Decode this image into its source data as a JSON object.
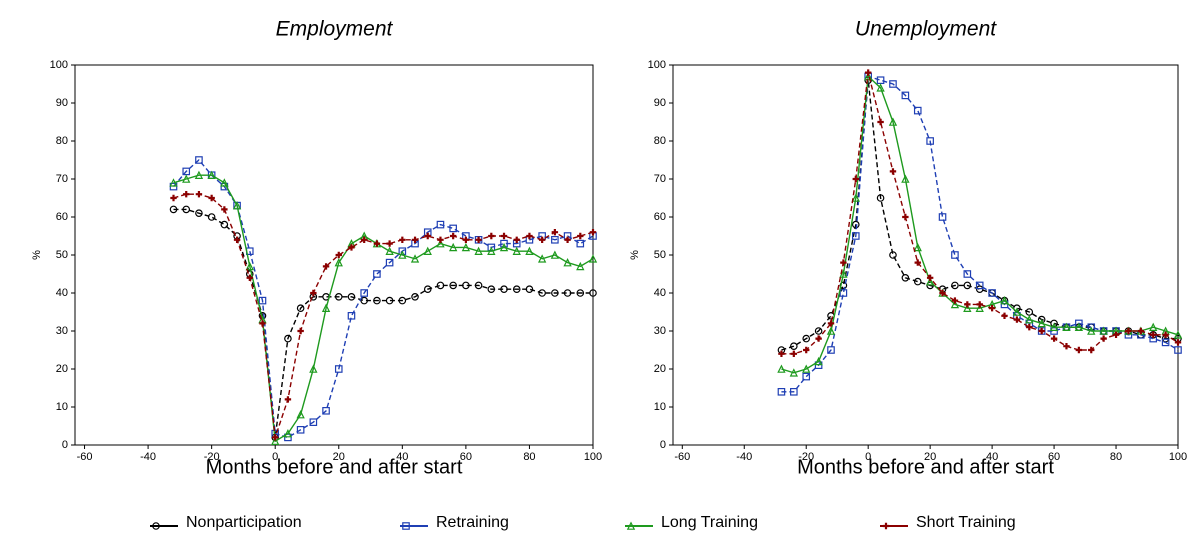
{
  "chart_data": [
    {
      "type": "line",
      "title": "Employment",
      "x_label": "Months before and after start",
      "y_label": "%",
      "x": [
        -32,
        -28,
        -24,
        -20,
        -16,
        -12,
        -8,
        -4,
        0,
        4,
        8,
        12,
        16,
        20,
        24,
        28,
        32,
        36,
        40,
        44,
        48,
        52,
        56,
        60,
        64,
        68,
        72,
        76,
        80,
        84,
        88,
        92,
        96,
        100
      ],
      "series": [
        {
          "name": "Nonparticipation",
          "color": "#000000",
          "marker": "circle",
          "line_style": "dashed",
          "values": [
            62,
            62,
            61,
            60,
            58,
            55,
            45,
            34,
            2,
            28,
            36,
            39,
            39,
            39,
            39,
            38,
            38,
            38,
            38,
            39,
            41,
            42,
            42,
            42,
            42,
            41,
            41,
            41,
            41,
            40,
            40,
            40,
            40,
            40
          ]
        },
        {
          "name": "Retraining",
          "color": "#1f3fb4",
          "marker": "square",
          "line_style": "dashed",
          "values": [
            68,
            72,
            75,
            71,
            68,
            63,
            51,
            38,
            3,
            2,
            4,
            6,
            9,
            20,
            34,
            40,
            45,
            48,
            51,
            53,
            56,
            58,
            57,
            55,
            54,
            52,
            53,
            53,
            54,
            55,
            54,
            55,
            53,
            55
          ]
        },
        {
          "name": "Long Training",
          "color": "#1e9a1e",
          "marker": "triangle",
          "line_style": "solid",
          "values": [
            69,
            70,
            71,
            71,
            69,
            63,
            47,
            33,
            1,
            3,
            8,
            20,
            36,
            48,
            53,
            55,
            53,
            51,
            50,
            49,
            51,
            53,
            52,
            52,
            51,
            51,
            52,
            51,
            51,
            49,
            50,
            48,
            47,
            49
          ]
        },
        {
          "name": "Short Training",
          "color": "#8b0000",
          "marker": "plus",
          "line_style": "dashed",
          "values": [
            65,
            66,
            66,
            65,
            62,
            54,
            44,
            32,
            2,
            12,
            30,
            40,
            47,
            50,
            52,
            54,
            53,
            53,
            54,
            54,
            55,
            54,
            55,
            54,
            54,
            55,
            55,
            54,
            55,
            54,
            56,
            54,
            55,
            56
          ]
        }
      ],
      "xlim": [
        -63,
        100
      ],
      "xticks": [
        -60,
        -40,
        -20,
        0,
        20,
        40,
        60,
        80,
        100
      ],
      "ylim": [
        0,
        100
      ],
      "yticks": [
        0,
        10,
        20,
        30,
        40,
        50,
        60,
        70,
        80,
        90,
        100
      ]
    },
    {
      "type": "line",
      "title": "Unemployment",
      "x_label": "Months before and after start",
      "y_label": "%",
      "x": [
        -28,
        -24,
        -20,
        -16,
        -12,
        -8,
        -4,
        0,
        4,
        8,
        12,
        16,
        20,
        24,
        28,
        32,
        36,
        40,
        44,
        48,
        52,
        56,
        60,
        64,
        68,
        72,
        76,
        80,
        84,
        88,
        92,
        96,
        100
      ],
      "series": [
        {
          "name": "Nonparticipation",
          "color": "#000000",
          "marker": "circle",
          "line_style": "dashed",
          "values": [
            25,
            26,
            28,
            30,
            34,
            42,
            58,
            96,
            65,
            50,
            44,
            43,
            42,
            41,
            42,
            42,
            41,
            40,
            38,
            36,
            35,
            33,
            32,
            31,
            31,
            31,
            30,
            30,
            30,
            29,
            29,
            28,
            28
          ]
        },
        {
          "name": "Retraining",
          "color": "#1f3fb4",
          "marker": "square",
          "line_style": "dashed",
          "values": [
            14,
            14,
            18,
            21,
            25,
            40,
            55,
            97,
            96,
            95,
            92,
            88,
            80,
            60,
            50,
            45,
            42,
            40,
            37,
            34,
            32,
            30,
            30,
            31,
            32,
            31,
            30,
            30,
            29,
            29,
            28,
            27,
            25
          ]
        },
        {
          "name": "Long Training",
          "color": "#1e9a1e",
          "marker": "triangle",
          "line_style": "solid",
          "values": [
            20,
            19,
            20,
            22,
            30,
            45,
            65,
            97,
            94,
            85,
            70,
            52,
            43,
            40,
            37,
            36,
            36,
            37,
            38,
            35,
            33,
            32,
            31,
            31,
            31,
            30,
            30,
            30,
            30,
            30,
            31,
            30,
            29
          ]
        },
        {
          "name": "Short Training",
          "color": "#8b0000",
          "marker": "plus",
          "line_style": "dashed",
          "values": [
            24,
            24,
            25,
            28,
            32,
            48,
            70,
            98,
            85,
            72,
            60,
            48,
            44,
            40,
            38,
            37,
            37,
            36,
            34,
            33,
            31,
            30,
            28,
            26,
            25,
            25,
            28,
            29,
            30,
            30,
            29,
            29,
            27
          ]
        }
      ],
      "xlim": [
        -63,
        100
      ],
      "xticks": [
        -60,
        -40,
        -20,
        0,
        20,
        40,
        60,
        80,
        100
      ],
      "ylim": [
        0,
        100
      ],
      "yticks": [
        0,
        10,
        20,
        30,
        40,
        50,
        60,
        70,
        80,
        90,
        100
      ]
    }
  ]
}
